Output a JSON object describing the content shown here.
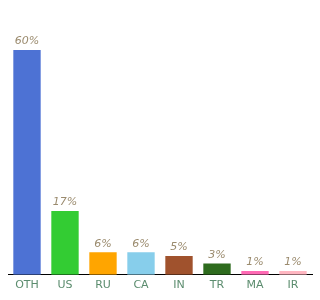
{
  "chart_data": {
    "type": "bar",
    "categories": [
      "OTH",
      "US",
      "RU",
      "CA",
      "IN",
      "TR",
      "MA",
      "IR"
    ],
    "values": [
      60,
      17,
      6,
      6,
      5,
      3,
      1,
      1
    ],
    "value_labels": [
      "60%",
      "17%",
      "6%",
      "6%",
      "5%",
      "3%",
      "1%",
      "1%"
    ],
    "colors": [
      "#4D72D4",
      "#33CC33",
      "#FFA500",
      "#87CEEB",
      "#A0522D",
      "#2E6B1E",
      "#FF69B4",
      "#FFB6C1"
    ],
    "ylim": [
      0,
      68
    ],
    "grid": false,
    "data_labels": true,
    "tick_labels": "x"
  }
}
